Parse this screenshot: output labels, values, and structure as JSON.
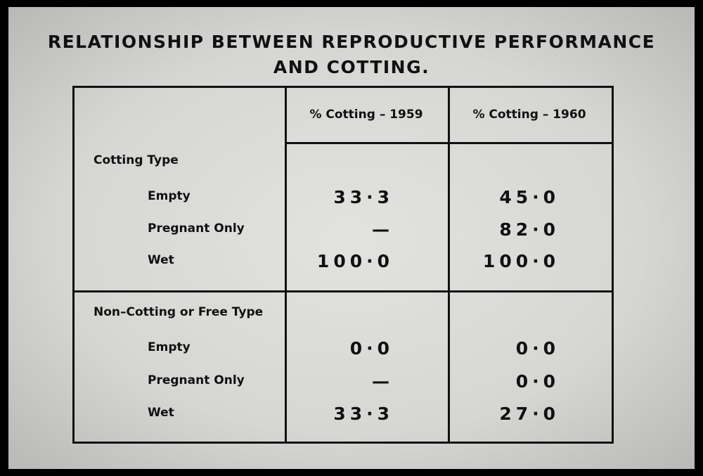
{
  "title": [
    "RELATIONSHIP BETWEEN REPRODUCTIVE PERFORMANCE",
    "AND COTTING."
  ],
  "table": {
    "headers": [
      "% Cotting – 1959",
      "% Cotting – 1960"
    ],
    "groups": [
      {
        "label": "Cotting Type",
        "rows": [
          {
            "label": "Empty",
            "values": [
              "33·3",
              "45·0"
            ]
          },
          {
            "label": "Pregnant Only",
            "values": [
              "—",
              "82·0"
            ]
          },
          {
            "label": "Wet",
            "values": [
              "100·0",
              "100·0"
            ]
          }
        ]
      },
      {
        "label": "Non–Cotting or Free Type",
        "rows": [
          {
            "label": "Empty",
            "values": [
              "0·0",
              "0·0"
            ]
          },
          {
            "label": "Pregnant Only",
            "values": [
              "—",
              "0·0"
            ]
          },
          {
            "label": "Wet",
            "values": [
              "33·3",
              "27·0"
            ]
          }
        ]
      }
    ]
  }
}
